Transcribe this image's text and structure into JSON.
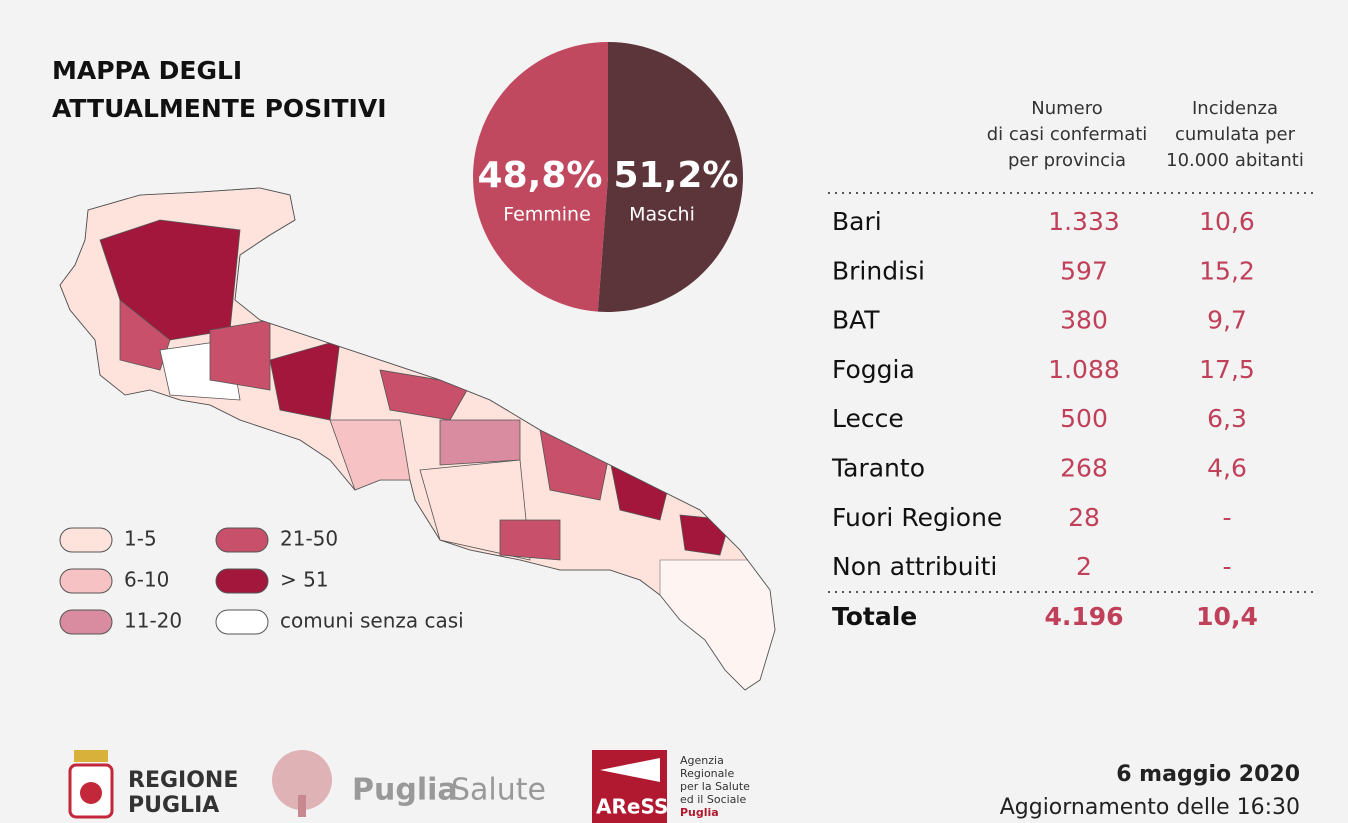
{
  "title": [
    "MAPPA DEGLI",
    "ATTUALMENTE POSITIVI"
  ],
  "chart_data": {
    "type": "pie",
    "categories": [
      "Femmine",
      "Maschi"
    ],
    "values": [
      48.8,
      51.2
    ],
    "value_labels": [
      "48,8%",
      "51,2%"
    ],
    "colors": [
      "#c0485f",
      "#5c353a"
    ]
  },
  "legend": [
    {
      "label": "1-5",
      "color": "#fde3dc"
    },
    {
      "label": "6-10",
      "color": "#f6c2c4"
    },
    {
      "label": "11-20",
      "color": "#d98ba0"
    },
    {
      "label": "21-50",
      "color": "#c8506b"
    },
    {
      "label": "> 51",
      "color": "#a3173d"
    },
    {
      "label": "comuni senza casi",
      "color": "#ffffff"
    }
  ],
  "table": {
    "headers": [
      [
        "Numero",
        "di casi confermati",
        "per provincia"
      ],
      [
        "Incidenza",
        "cumulata per",
        "10.000 abitanti"
      ]
    ],
    "rows": [
      [
        "Bari",
        "1.333",
        "10,6"
      ],
      [
        "Brindisi",
        "597",
        "15,2"
      ],
      [
        "BAT",
        "380",
        "9,7"
      ],
      [
        "Foggia",
        "1.088",
        "17,5"
      ],
      [
        "Lecce",
        "500",
        "6,3"
      ],
      [
        "Taranto",
        "268",
        "4,6"
      ],
      [
        "Fuori Regione",
        "28",
        "-"
      ],
      [
        "Non attribuiti",
        "2",
        "-"
      ]
    ],
    "total": [
      "Totale",
      "4.196",
      "10,4"
    ]
  },
  "footer": {
    "regione": [
      "REGIONE",
      "PUGLIA"
    ],
    "puglia_salute": [
      "Puglia",
      "Salute"
    ],
    "aress": "AReSS",
    "agenzia": [
      "Agenzia",
      "Regionale",
      "per la Salute",
      "ed il Sociale",
      "Puglia"
    ],
    "date": "6 maggio 2020",
    "update": "Aggiornamento delle 16:30"
  }
}
